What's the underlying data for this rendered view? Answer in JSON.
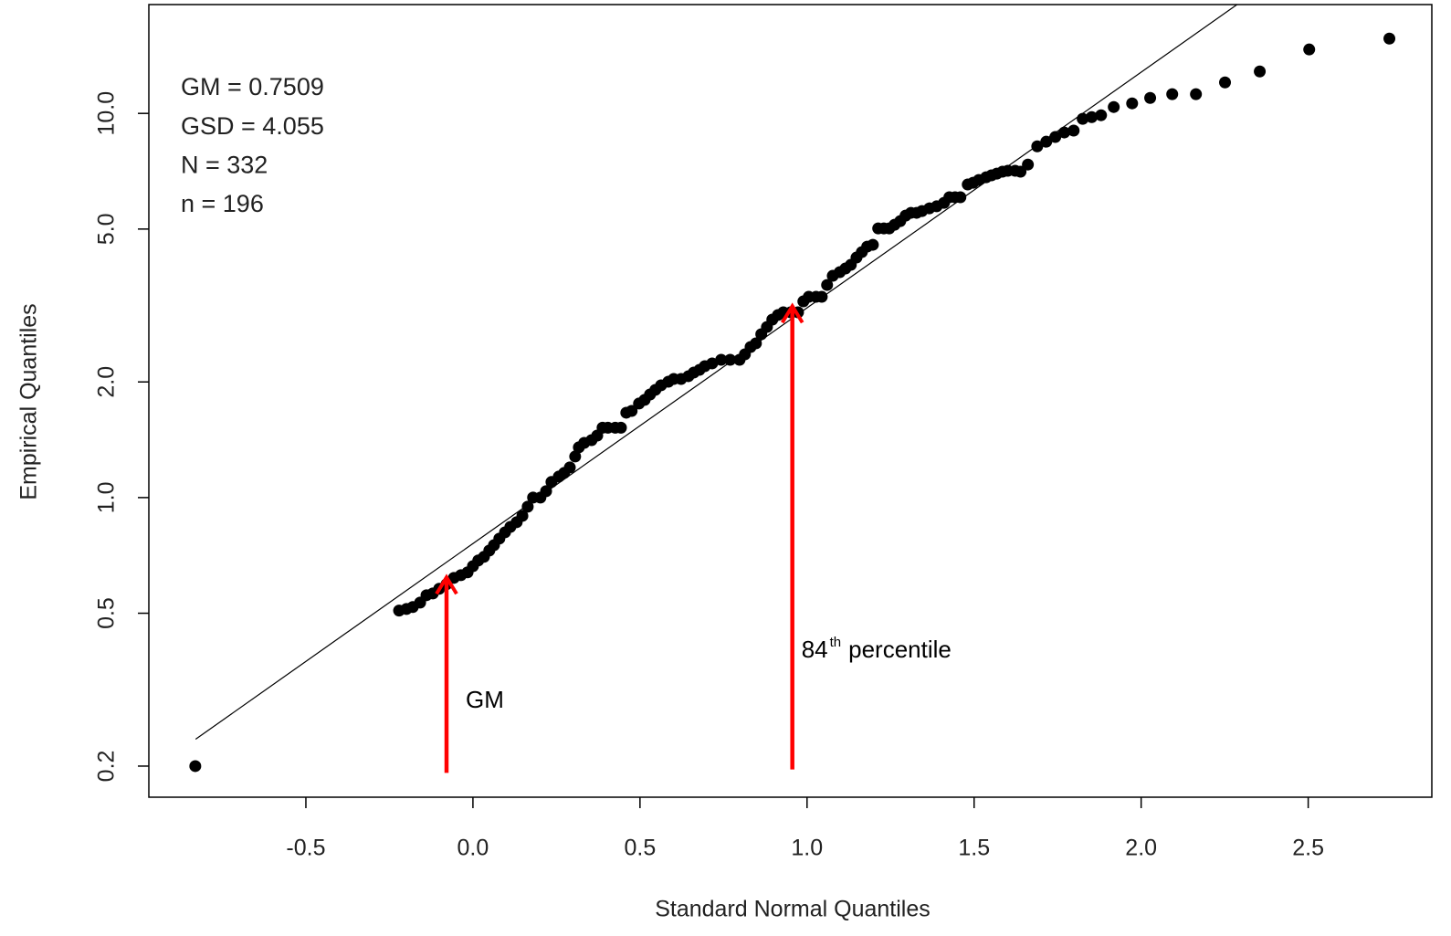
{
  "chart_data": {
    "type": "scatter",
    "x_label": "Standard Normal Quantiles",
    "y_label": "Empirical Quantiles",
    "yscale": "log",
    "color": "#000000",
    "xlim": [
      -0.97,
      2.87
    ],
    "ylim": [
      0.166,
      19.2
    ],
    "xticks": [
      -0.5,
      {
        "value": 0,
        "label": "0.0"
      },
      0.5,
      {
        "value": 1,
        "label": "1.0"
      },
      1.5,
      {
        "value": 2,
        "label": "2.0"
      },
      2.5
    ],
    "yticks": [
      0.2,
      0.5,
      {
        "value": 1,
        "label": "1.0"
      },
      {
        "value": 2,
        "label": "2.0"
      },
      {
        "value": 5,
        "label": "5.0"
      },
      {
        "value": 10,
        "label": "10.0"
      }
    ],
    "x": [
      -0.831,
      -0.221,
      -0.199,
      -0.18,
      -0.158,
      -0.139,
      -0.12,
      -0.101,
      -0.079,
      -0.057,
      -0.036,
      -0.016,
      0,
      0.016,
      0.033,
      0.049,
      0.063,
      0.079,
      0.096,
      0.112,
      0.131,
      0.148,
      0.164,
      0.18,
      0.202,
      0.219,
      0.235,
      0.257,
      0.273,
      0.29,
      0.306,
      0.317,
      0.333,
      0.355,
      0.372,
      0.388,
      0.404,
      0.426,
      0.443,
      0.459,
      0.475,
      0.497,
      0.514,
      0.53,
      0.546,
      0.563,
      0.585,
      0.601,
      0.623,
      0.645,
      0.661,
      0.678,
      0.694,
      0.716,
      0.743,
      0.77,
      0.798,
      0.814,
      0.831,
      0.847,
      0.863,
      0.88,
      0.896,
      0.913,
      0.929,
      0.951,
      0.973,
      0.989,
      1.005,
      1.027,
      1.044,
      1.06,
      1.077,
      1.098,
      1.115,
      1.131,
      1.148,
      1.164,
      1.18,
      1.197,
      1.213,
      1.23,
      1.246,
      1.262,
      1.279,
      1.295,
      1.311,
      1.328,
      1.344,
      1.366,
      1.388,
      1.41,
      1.426,
      1.443,
      1.459,
      1.481,
      1.497,
      1.514,
      1.536,
      1.552,
      1.568,
      1.585,
      1.601,
      1.623,
      1.639,
      1.661,
      1.689,
      1.716,
      1.743,
      1.77,
      1.798,
      1.825,
      1.852,
      1.88,
      1.918,
      1.973,
      2.027,
      2.093,
      2.164,
      2.251,
      2.355,
      2.503,
      2.743
    ],
    "values": [
      0.2,
      0.508,
      0.513,
      0.519,
      0.533,
      0.557,
      0.563,
      0.579,
      0.595,
      0.618,
      0.628,
      0.639,
      0.663,
      0.686,
      0.701,
      0.728,
      0.752,
      0.782,
      0.812,
      0.839,
      0.863,
      0.896,
      0.947,
      1,
      1,
      1.039,
      1.098,
      1.134,
      1.159,
      1.198,
      1.279,
      1.351,
      1.388,
      1.411,
      1.45,
      1.52,
      1.52,
      1.52,
      1.52,
      1.663,
      1.681,
      1.757,
      1.796,
      1.855,
      1.907,
      1.96,
      2.003,
      2.036,
      2.036,
      2.07,
      2.115,
      2.15,
      2.198,
      2.235,
      2.284,
      2.284,
      2.284,
      2.36,
      2.466,
      2.52,
      2.662,
      2.78,
      2.906,
      2.987,
      3.036,
      3.036,
      3.036,
      3.241,
      3.331,
      3.331,
      3.331,
      3.576,
      3.778,
      3.862,
      3.947,
      4.034,
      4.215,
      4.355,
      4.5,
      4.55,
      5.02,
      5.02,
      5.02,
      5.13,
      5.245,
      5.42,
      5.51,
      5.51,
      5.57,
      5.66,
      5.73,
      5.85,
      6.05,
      6.05,
      6.05,
      6.53,
      6.6,
      6.71,
      6.82,
      6.9,
      6.97,
      7.05,
      7.09,
      7.09,
      7.05,
      7.36,
      8.21,
      8.44,
      8.68,
      8.92,
      9.02,
      9.68,
      9.78,
      9.89,
      10.39,
      10.62,
      10.97,
      11.22,
      11.22,
      12.04,
      12.86,
      14.67,
      15.66
    ],
    "reference_line": {
      "color": "#000000",
      "x": [
        -0.83,
        2.287
      ],
      "y": [
        0.235,
        19.2
      ]
    },
    "stats": [
      "GM = 0.7509",
      "GSD = 4.055",
      "N = 332",
      "n = 196"
    ],
    "arrows": [
      {
        "color": "#ff0000",
        "label": [
          "GM"
        ],
        "x": -0.079,
        "y": [
          0.192,
          0.62
        ]
      },
      {
        "color": "#ff0000",
        "label": [
          "84",
          "th",
          "percentile"
        ],
        "x": 0.956,
        "y": [
          0.196,
          3.15
        ]
      }
    ]
  }
}
